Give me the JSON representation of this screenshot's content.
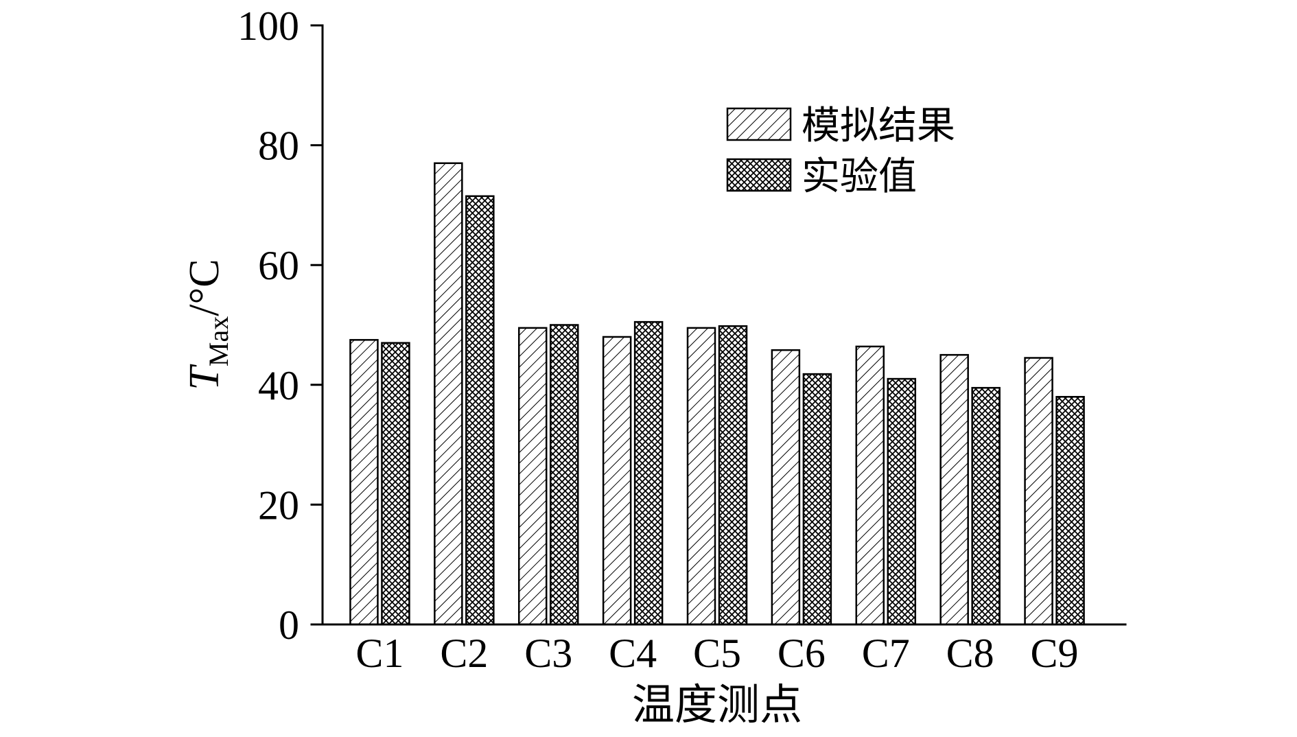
{
  "chart_data": {
    "type": "bar",
    "title": "",
    "categories": [
      "C1",
      "C2",
      "C3",
      "C4",
      "C5",
      "C6",
      "C7",
      "C8",
      "C9"
    ],
    "series": [
      {
        "name": "模拟结果",
        "pattern": "diagonal-hatch",
        "values": [
          47.5,
          77,
          49.5,
          48,
          49.5,
          45.8,
          46.4,
          45,
          44.5
        ]
      },
      {
        "name": "实验值",
        "pattern": "cross-hatch",
        "values": [
          47,
          71.5,
          50,
          50.5,
          49.8,
          41.8,
          41,
          39.5,
          38
        ]
      }
    ],
    "xlabel": "温度测点",
    "ylabel": "T_Max/°C",
    "ylabel_t": "T",
    "ylabel_sub": "Max",
    "ylabel_rest": "/°C",
    "ylim": [
      0,
      100
    ],
    "yticks": [
      0,
      20,
      40,
      60,
      80,
      100
    ],
    "grid": false,
    "legend_position": "upper-right-inside"
  },
  "colors": {
    "axis": "#000000",
    "bar_fill": "#ffffff",
    "bar_stroke": "#000000",
    "background": "#ffffff"
  }
}
